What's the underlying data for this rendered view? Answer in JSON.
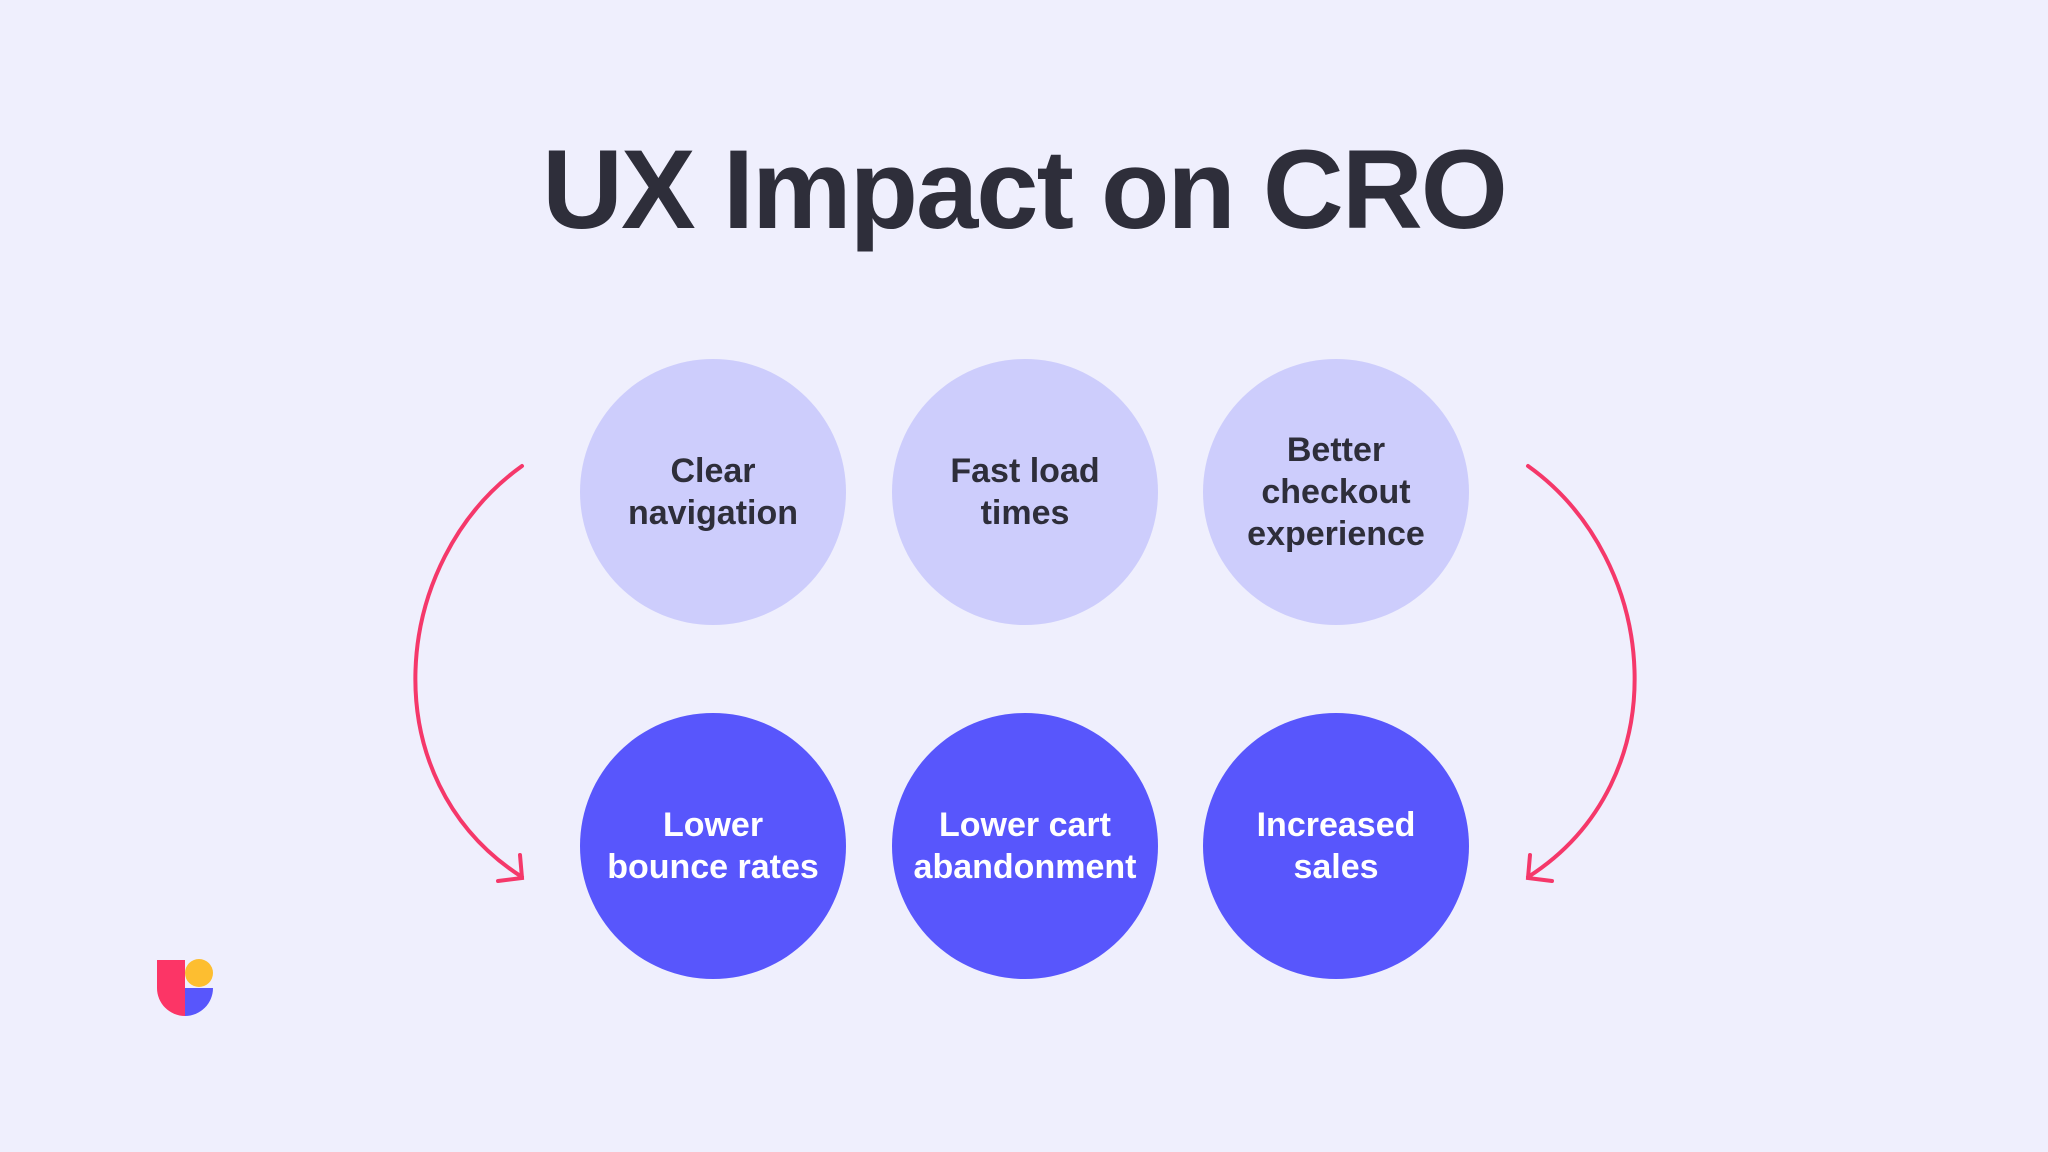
{
  "title": "UX Impact on CRO",
  "ux_factors": [
    "Clear\nnavigation",
    "Fast load\ntimes",
    "Better\ncheckout\nexperience"
  ],
  "outcomes": [
    "Lower\nbounce rates",
    "Lower cart\nabandonment",
    "Increased\nsales"
  ],
  "colors": {
    "background": "#efeffd",
    "factor_fill": "#cdcdfc",
    "outcome_fill": "#5856fc",
    "arrow": "#f5386a",
    "text_dark": "#2e2e3a"
  },
  "logo": {
    "colors": [
      "#fc3566",
      "#fdbe30",
      "#5856fc"
    ]
  }
}
